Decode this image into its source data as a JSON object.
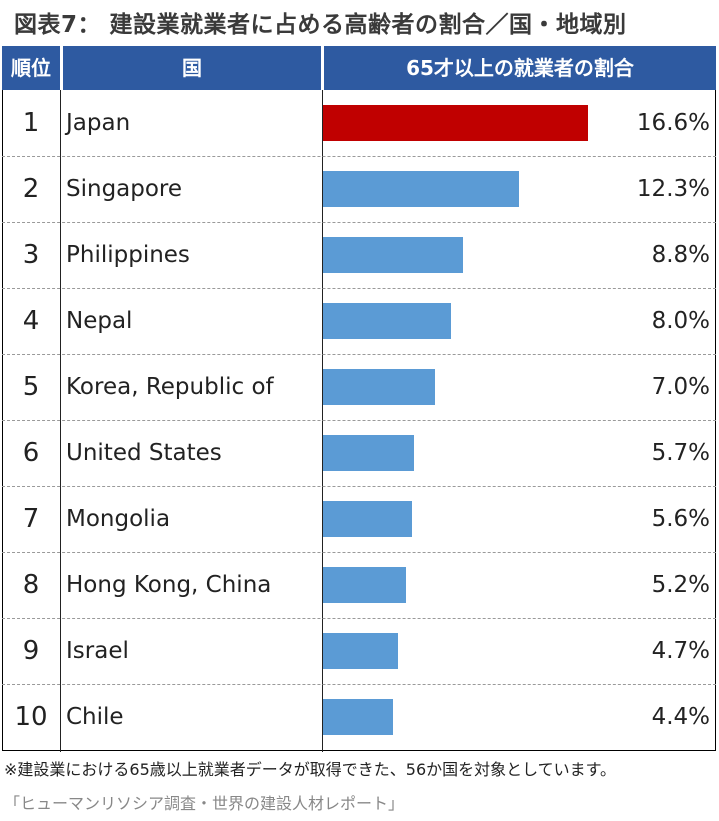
{
  "title": "図表7： 建設業就業者に占める高齢者の割合／国・地域別",
  "header": {
    "rank": "順位",
    "country": "国",
    "share": "65才以上の就業者の割合"
  },
  "chart_data": {
    "type": "bar",
    "orientation": "horizontal",
    "title": "図表7： 建設業就業者に占める高齢者の割合／国・地域別",
    "ylabel": "65才以上の就業者の割合",
    "xlim": [
      0,
      18.8
    ],
    "categories": [
      "Japan",
      "Singapore",
      "Philippines",
      "Nepal",
      "Korea, Republic of",
      "United States",
      "Mongolia",
      "Hong Kong, China",
      "Israel",
      "Chile"
    ],
    "ranks": [
      "1",
      "2",
      "3",
      "4",
      "5",
      "6",
      "7",
      "8",
      "9",
      "10"
    ],
    "values": [
      16.6,
      12.3,
      8.8,
      8.0,
      7.0,
      5.7,
      5.6,
      5.2,
      4.7,
      4.4
    ],
    "labels": [
      "16.6%",
      "12.3%",
      "8.8%",
      "8.0%",
      "7.0%",
      "5.7%",
      "5.6%",
      "5.2%",
      "4.7%",
      "4.4%"
    ],
    "colors": {
      "highlight": "#c00000",
      "default": "#5b9bd5",
      "header": "#2e5aa1"
    }
  },
  "footer": {
    "note": "※建設業における65歳以上就業者データが取得できた、56か国を対象としています。",
    "source": "「ヒューマンリソシア調査・世界の建設人材レポート」"
  }
}
